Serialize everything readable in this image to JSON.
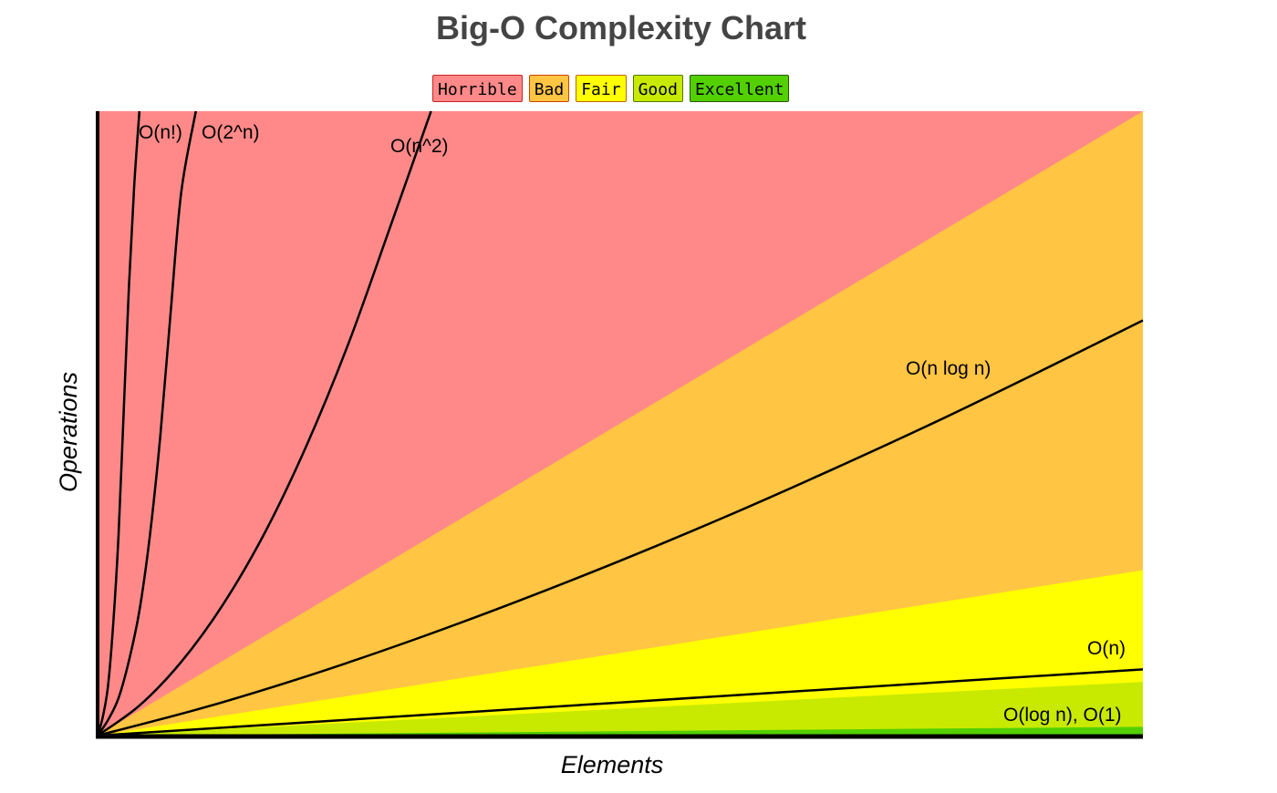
{
  "chart_data": {
    "type": "area",
    "title": "Big-O Complexity Chart",
    "xlabel": "Elements",
    "ylabel": "Operations",
    "xlim": [
      0,
      100
    ],
    "ylim": [
      0,
      1000
    ],
    "grid": false,
    "legend_position": "top-center",
    "legend": [
      {
        "name": "Horrible",
        "color": "#ff8989",
        "border": "#cc2222"
      },
      {
        "name": "Bad",
        "color": "#ffc543",
        "border": "#cc4400"
      },
      {
        "name": "Fair",
        "color": "#ffff00",
        "border": "#bb6600"
      },
      {
        "name": "Good",
        "color": "#c8ea00",
        "border": "#557700"
      },
      {
        "name": "Excellent",
        "color": "#53d000",
        "border": "#225500"
      }
    ],
    "regions": [
      {
        "name": "Excellent",
        "boundary": [
          [
            0,
            0
          ],
          [
            100,
            14
          ]
        ]
      },
      {
        "name": "Good",
        "boundary": [
          [
            0,
            0
          ],
          [
            100,
            86
          ]
        ]
      },
      {
        "name": "Fair",
        "boundary": [
          [
            0,
            0
          ],
          [
            100,
            265
          ]
        ]
      },
      {
        "name": "Bad",
        "boundary": [
          [
            0,
            0
          ],
          [
            100,
            1000
          ]
        ]
      }
    ],
    "series": [
      {
        "name": "O(n!)",
        "label": "O(n!)",
        "points": [
          [
            0,
            0
          ],
          [
            0.5,
            30
          ],
          [
            1,
            80
          ],
          [
            1.5,
            180
          ],
          [
            2,
            320
          ],
          [
            2.5,
            520
          ],
          [
            3,
            720
          ],
          [
            3.5,
            880
          ],
          [
            4,
            1000
          ]
        ]
      },
      {
        "name": "O(2^n)",
        "label": "O(2^n)",
        "points": [
          [
            0,
            0
          ],
          [
            1,
            25
          ],
          [
            2,
            60
          ],
          [
            3,
            120
          ],
          [
            4,
            200
          ],
          [
            5,
            320
          ],
          [
            6,
            480
          ],
          [
            7,
            680
          ],
          [
            8,
            870
          ],
          [
            9.4,
            1000
          ]
        ]
      },
      {
        "name": "O(n^2)",
        "label": "O(n^2)",
        "points": [
          [
            0,
            0
          ],
          [
            4,
            48
          ],
          [
            8,
            118
          ],
          [
            12,
            210
          ],
          [
            16,
            325
          ],
          [
            20,
            465
          ],
          [
            24,
            628
          ],
          [
            28,
            815
          ],
          [
            31.9,
            1000
          ]
        ]
      },
      {
        "name": "O(n log n)",
        "label": "O(n log n)",
        "points": [
          [
            0,
            0
          ],
          [
            10,
            44
          ],
          [
            20,
            95
          ],
          [
            30,
            152
          ],
          [
            40,
            214
          ],
          [
            50,
            280
          ],
          [
            60,
            350
          ],
          [
            70,
            424
          ],
          [
            80,
            501
          ],
          [
            90,
            582
          ],
          [
            100,
            665
          ]
        ]
      },
      {
        "name": "O(n)",
        "label": "O(n)",
        "points": [
          [
            0,
            0
          ],
          [
            100,
            106
          ]
        ]
      },
      {
        "name": "O(log n), O(1)",
        "label": "O(log n), O(1)",
        "points": [
          [
            0,
            0
          ],
          [
            100,
            0
          ]
        ]
      }
    ]
  }
}
